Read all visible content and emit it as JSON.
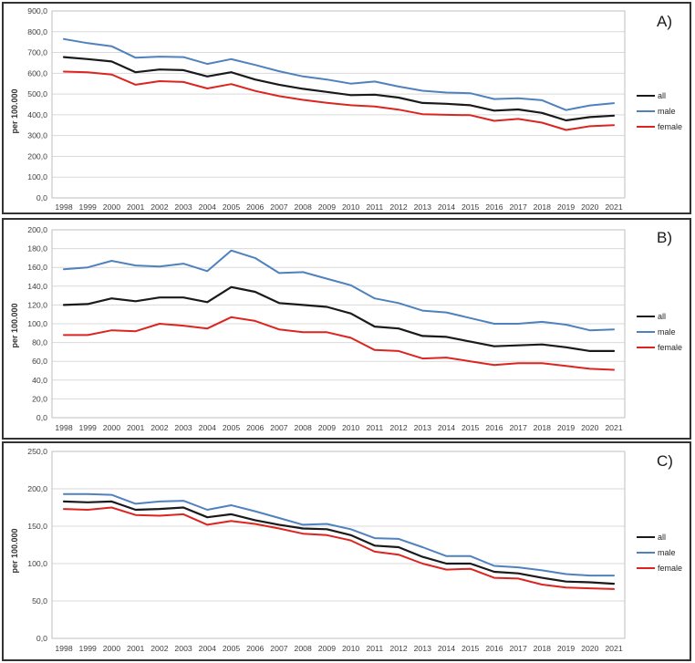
{
  "colors": {
    "all": "#1a1a1a",
    "male": "#4f81bd",
    "female": "#dc2420",
    "grid": "#d9d9d9",
    "plot_border": "#bfbfbf"
  },
  "categories": [
    "1998",
    "1999",
    "2000",
    "2001",
    "2002",
    "2003",
    "2004",
    "2005",
    "2006",
    "2007",
    "2008",
    "2009",
    "2010",
    "2011",
    "2012",
    "2013",
    "2014",
    "2015",
    "2016",
    "2017",
    "2018",
    "2019",
    "2020",
    "2021"
  ],
  "chart_data": [
    {
      "id": "A",
      "panel_label": "A)",
      "type": "line",
      "ylabel": "per 100.000",
      "xlabel": "",
      "ylim": [
        0,
        900
      ],
      "y_step": 100,
      "grid": true,
      "legend_position": "right",
      "y_ticks": [
        "900,0",
        "800,0",
        "700,0",
        "600,0",
        "500,0",
        "400,0",
        "300,0",
        "200,0",
        "100,0",
        "0,0"
      ],
      "series": [
        {
          "name": "all",
          "color_key": "all",
          "values": [
            678,
            668,
            657,
            605,
            618,
            615,
            585,
            605,
            570,
            545,
            525,
            510,
            495,
            497,
            483,
            457,
            453,
            446,
            420,
            426,
            409,
            373,
            389,
            396
          ]
        },
        {
          "name": "male",
          "color_key": "male",
          "values": [
            765,
            745,
            730,
            675,
            680,
            678,
            645,
            668,
            640,
            610,
            585,
            570,
            550,
            560,
            536,
            516,
            507,
            504,
            476,
            480,
            470,
            423,
            445,
            456
          ]
        },
        {
          "name": "female",
          "color_key": "female",
          "values": [
            608,
            605,
            594,
            545,
            562,
            558,
            527,
            548,
            515,
            490,
            472,
            458,
            446,
            440,
            425,
            403,
            400,
            398,
            371,
            380,
            362,
            327,
            345,
            350
          ]
        }
      ]
    },
    {
      "id": "B",
      "panel_label": "B)",
      "type": "line",
      "ylabel": "per 100.000",
      "xlabel": "",
      "ylim": [
        0,
        200
      ],
      "y_step": 20,
      "grid": true,
      "legend_position": "right",
      "y_ticks": [
        "200,0",
        "180,0",
        "160,0",
        "140,0",
        "120,0",
        "100,0",
        "80,0",
        "60,0",
        "40,0",
        "20,0",
        "0,0"
      ],
      "series": [
        {
          "name": "all",
          "color_key": "all",
          "values": [
            120,
            121,
            127,
            124,
            128,
            128,
            123,
            139,
            134,
            122,
            120,
            118,
            111,
            97,
            95,
            87,
            86,
            81,
            76,
            77,
            78,
            75,
            71,
            71
          ]
        },
        {
          "name": "male",
          "color_key": "male",
          "values": [
            158,
            160,
            167,
            162,
            161,
            164,
            156,
            178,
            170,
            154,
            155,
            148,
            141,
            127,
            122,
            114,
            112,
            106,
            100,
            100,
            102,
            99,
            93,
            94
          ]
        },
        {
          "name": "female",
          "color_key": "female",
          "values": [
            88,
            88,
            93,
            92,
            100,
            98,
            95,
            107,
            103,
            94,
            91,
            91,
            85,
            72,
            71,
            63,
            64,
            60,
            56,
            58,
            58,
            55,
            52,
            51
          ]
        }
      ]
    },
    {
      "id": "C",
      "panel_label": "C)",
      "type": "line",
      "ylabel": "per 100.000",
      "xlabel": "",
      "ylim": [
        0,
        250
      ],
      "y_step": 50,
      "grid": true,
      "legend_position": "right",
      "y_ticks": [
        "250,0",
        "200,0",
        "150,0",
        "100,0",
        "50,0",
        "0,0"
      ],
      "series": [
        {
          "name": "all",
          "color_key": "all",
          "values": [
            183,
            182,
            183,
            172,
            173,
            175,
            162,
            166,
            158,
            152,
            147,
            146,
            138,
            124,
            122,
            109,
            100,
            100,
            89,
            87,
            81,
            76,
            75,
            73
          ]
        },
        {
          "name": "male",
          "color_key": "male",
          "values": [
            193,
            193,
            192,
            180,
            183,
            184,
            172,
            178,
            170,
            161,
            152,
            153,
            146,
            134,
            133,
            122,
            110,
            110,
            97,
            95,
            91,
            86,
            84,
            84
          ]
        },
        {
          "name": "female",
          "color_key": "female",
          "values": [
            173,
            172,
            175,
            165,
            164,
            166,
            152,
            157,
            153,
            147,
            140,
            138,
            131,
            116,
            112,
            100,
            92,
            93,
            81,
            80,
            72,
            68,
            67,
            66
          ]
        }
      ]
    }
  ]
}
